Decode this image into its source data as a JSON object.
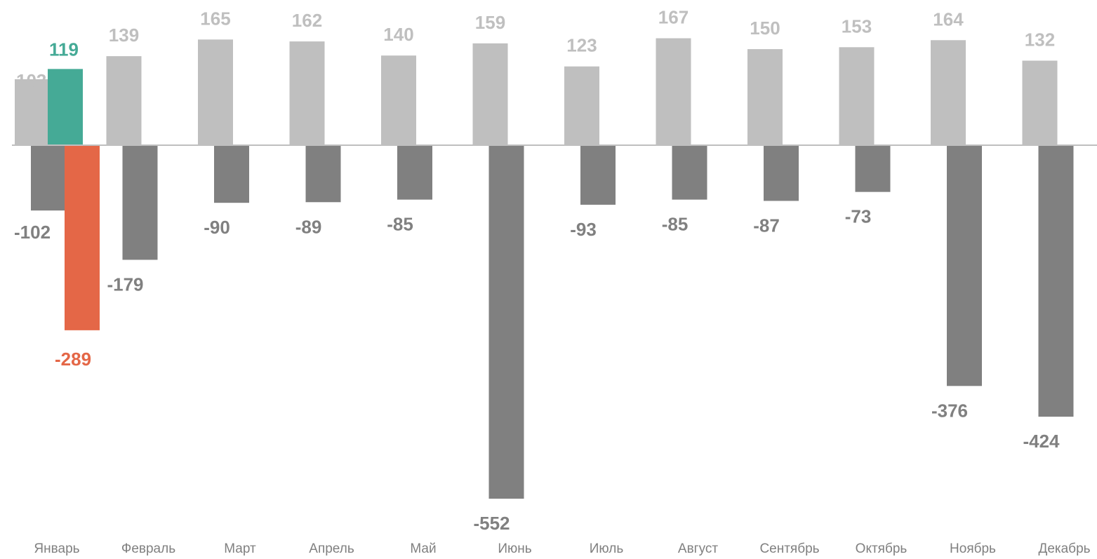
{
  "chart_data": {
    "type": "bar",
    "categories": [
      "Январь",
      "Февраль",
      "Март",
      "Апрель",
      "Май",
      "Июнь",
      "Июль",
      "Август",
      "Сентябрь",
      "Октябрь",
      "Ноябрь",
      "Декабрь"
    ],
    "series": [
      {
        "values": [
          103,
          139,
          165,
          162,
          140,
          159,
          123,
          167,
          150,
          153,
          164,
          132
        ],
        "color": "#bfbfbf"
      },
      {
        "values": [
          -102,
          -179,
          -90,
          -89,
          -85,
          -552,
          -93,
          -85,
          -87,
          -73,
          -376,
          -424
        ],
        "color": "#808080"
      }
    ],
    "highlight": {
      "category": "Январь",
      "series": [
        {
          "value": 119,
          "color": "#45aa96"
        },
        {
          "value": -289,
          "color": "#e46747"
        }
      ]
    },
    "axis_color": "#bfbfbf",
    "grid": false,
    "legend": "none"
  }
}
